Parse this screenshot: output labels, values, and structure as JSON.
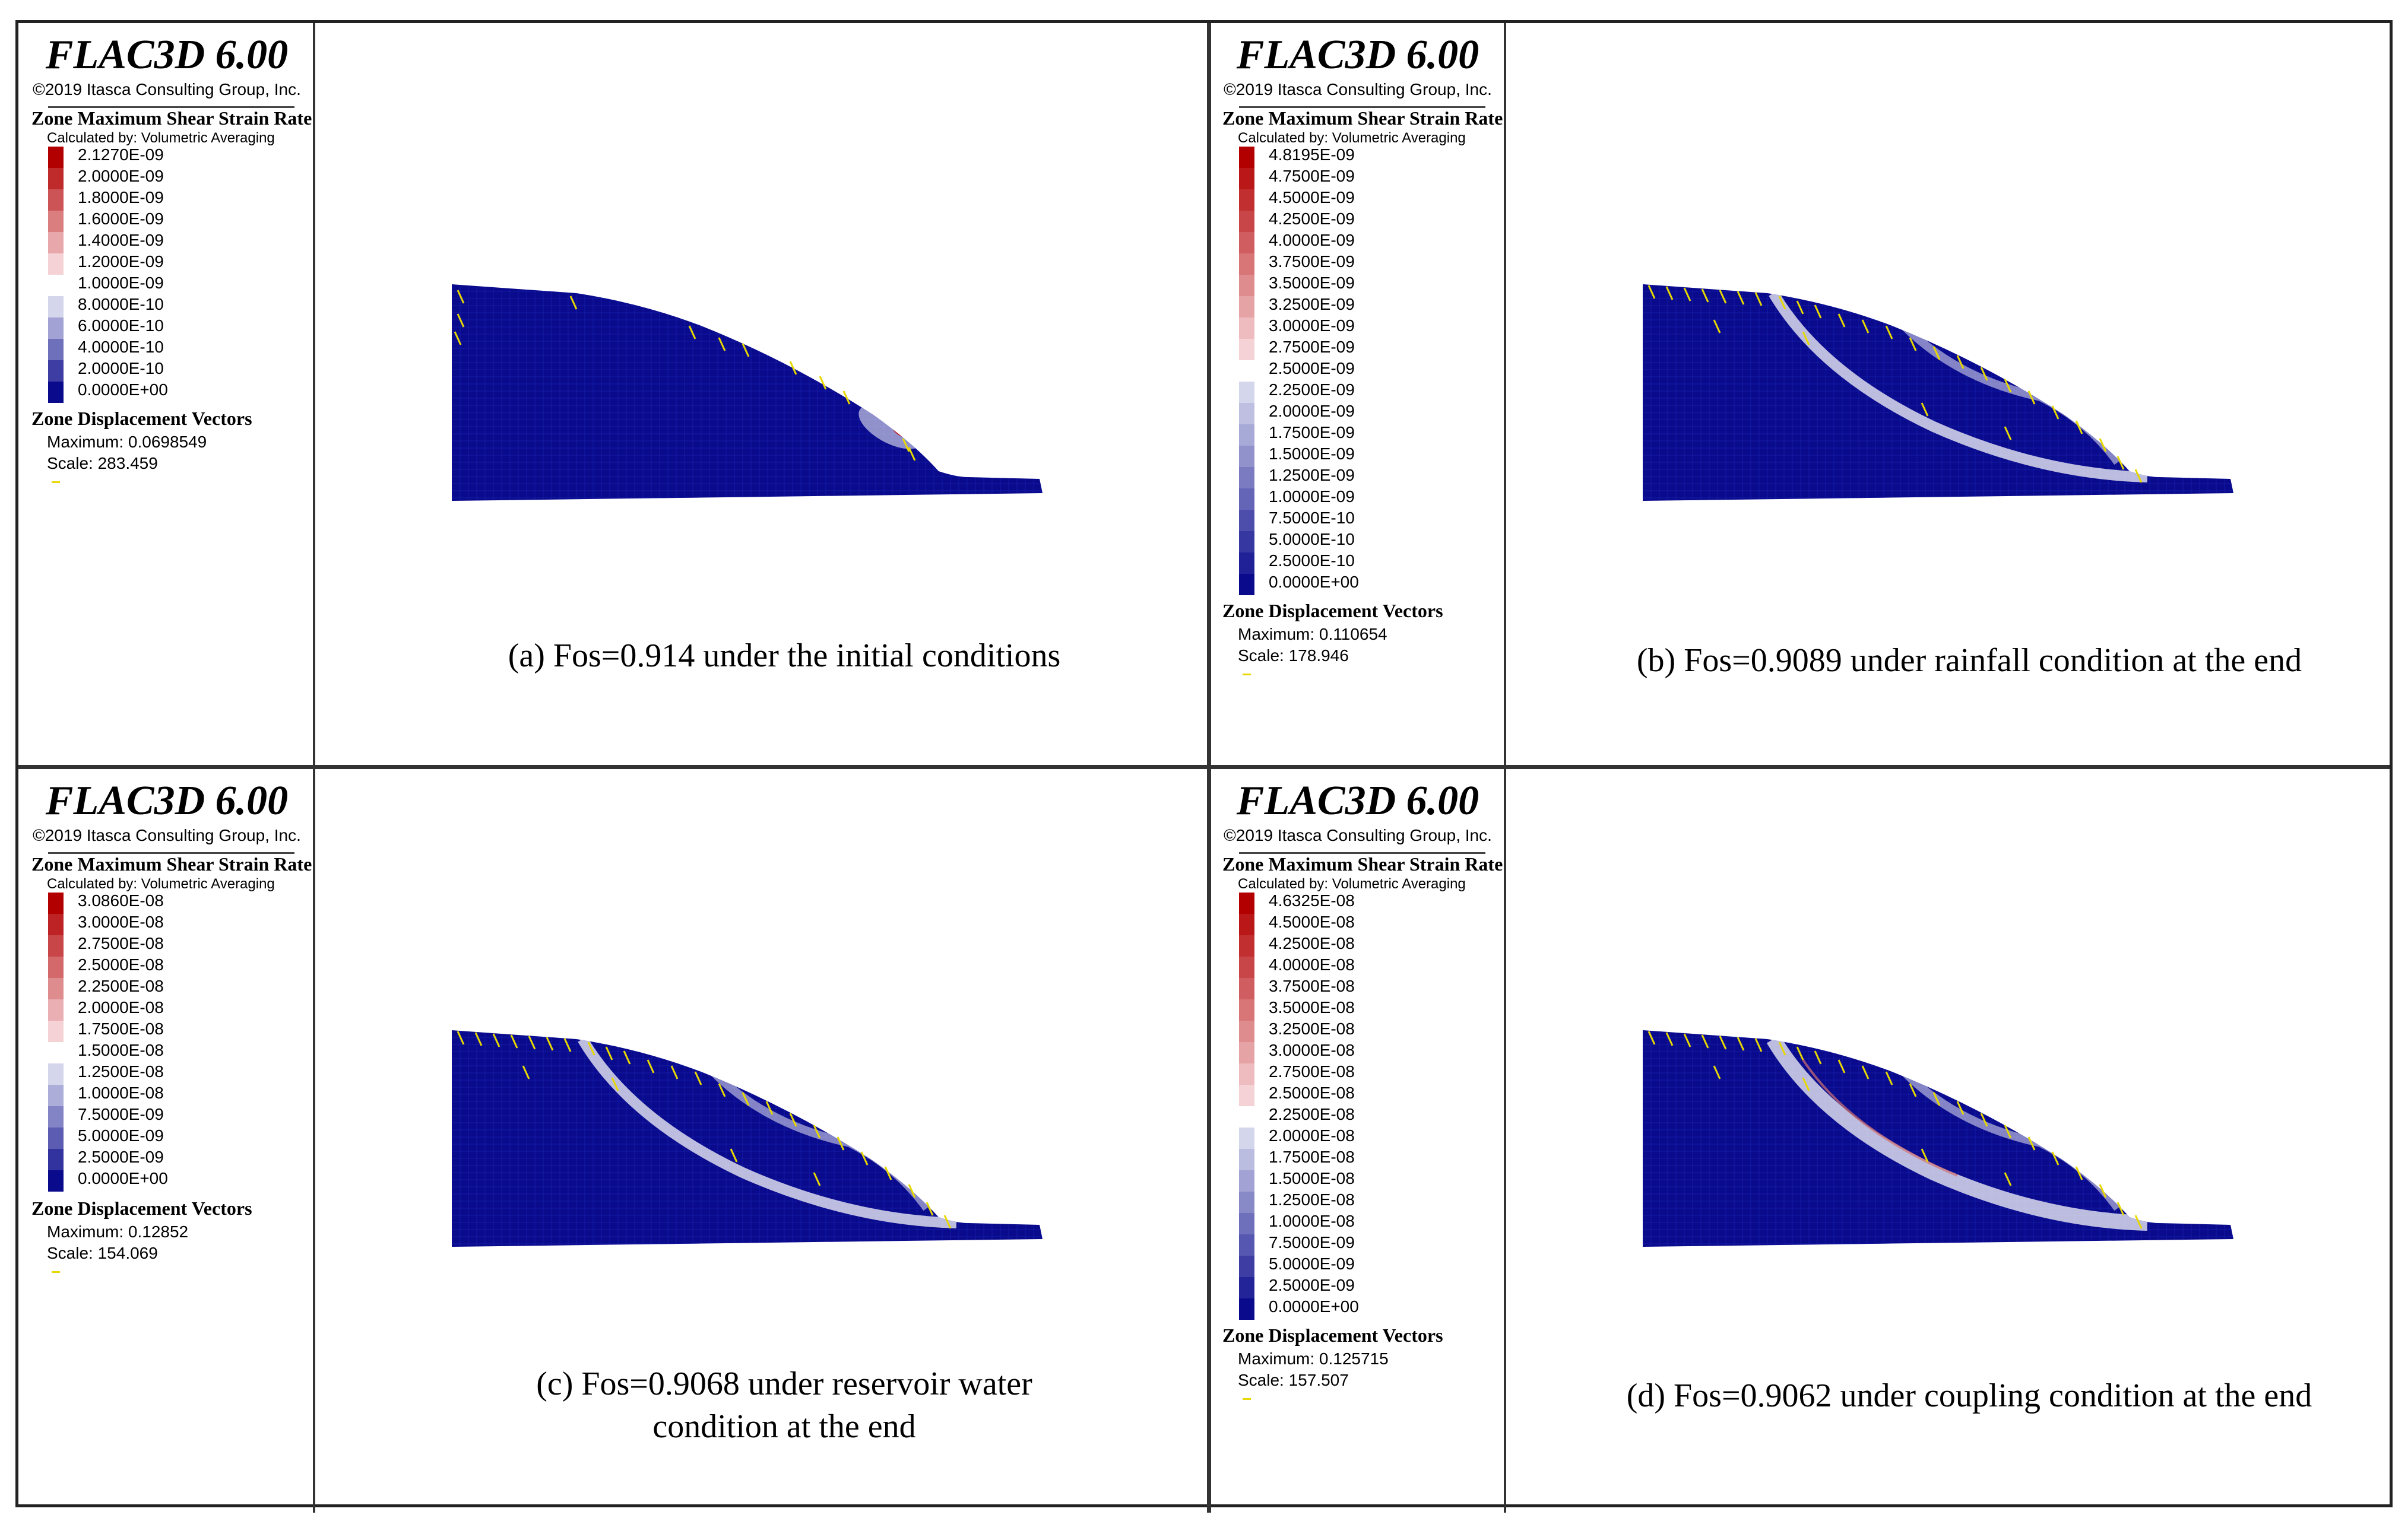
{
  "panels": [
    {
      "software": "FLAC3D 6.00",
      "copyright": "©2019 Itasca Consulting Group, Inc.",
      "contour_heading": "Zone Maximum Shear Strain Rate",
      "contour_sub": "Calculated by: Volumetric Averaging",
      "scale_labels": [
        "2.1270E-09",
        "2.0000E-09",
        "1.8000E-09",
        "1.6000E-09",
        "1.4000E-09",
        "1.2000E-09",
        "1.0000E-09",
        "8.0000E-10",
        "6.0000E-10",
        "4.0000E-10",
        "2.0000E-10",
        "0.0000E+00"
      ],
      "vectors_heading": "Zone Displacement Vectors",
      "maximum": "Maximum: 0.0698549",
      "scale": "Scale: 283.459",
      "caption": "(a)  Fos=0.914  under the initial conditions"
    },
    {
      "software": "FLAC3D 6.00",
      "copyright": "©2019 Itasca Consulting Group, Inc.",
      "contour_heading": "Zone Maximum Shear Strain Rate",
      "contour_sub": "Calculated by: Volumetric Averaging",
      "scale_labels": [
        "4.8195E-09",
        "4.7500E-09",
        "4.5000E-09",
        "4.2500E-09",
        "4.0000E-09",
        "3.7500E-09",
        "3.5000E-09",
        "3.2500E-09",
        "3.0000E-09",
        "2.7500E-09",
        "2.5000E-09",
        "2.2500E-09",
        "2.0000E-09",
        "1.7500E-09",
        "1.5000E-09",
        "1.2500E-09",
        "1.0000E-09",
        "7.5000E-10",
        "5.0000E-10",
        "2.5000E-10",
        "0.0000E+00"
      ],
      "vectors_heading": "Zone Displacement Vectors",
      "maximum": "Maximum: 0.110654",
      "scale": "Scale: 178.946",
      "caption": "(b)  Fos=0.9089 under rainfall condition at the end"
    },
    {
      "software": "FLAC3D 6.00",
      "copyright": "©2019 Itasca Consulting Group, Inc.",
      "contour_heading": "Zone Maximum Shear Strain Rate",
      "contour_sub": "Calculated by: Volumetric Averaging",
      "scale_labels": [
        "3.0860E-08",
        "3.0000E-08",
        "2.7500E-08",
        "2.5000E-08",
        "2.2500E-08",
        "2.0000E-08",
        "1.7500E-08",
        "1.5000E-08",
        "1.2500E-08",
        "1.0000E-08",
        "7.5000E-09",
        "5.0000E-09",
        "2.5000E-09",
        "0.0000E+00"
      ],
      "vectors_heading": "Zone Displacement Vectors",
      "maximum": "Maximum: 0.12852",
      "scale": "Scale: 154.069",
      "caption_line1": "(c) Fos=0.9068 under  reservoir water",
      "caption_line2": "condition at the end"
    },
    {
      "software": "FLAC3D 6.00",
      "copyright": "©2019 Itasca Consulting Group, Inc.",
      "contour_heading": "Zone Maximum Shear Strain Rate",
      "contour_sub": "Calculated by: Volumetric Averaging",
      "scale_labels": [
        "4.6325E-08",
        "4.5000E-08",
        "4.2500E-08",
        "4.0000E-08",
        "3.7500E-08",
        "3.5000E-08",
        "3.2500E-08",
        "3.0000E-08",
        "2.7500E-08",
        "2.5000E-08",
        "2.2500E-08",
        "2.0000E-08",
        "1.7500E-08",
        "1.5000E-08",
        "1.2500E-08",
        "1.0000E-08",
        "7.5000E-09",
        "5.0000E-09",
        "2.5000E-09",
        "0.0000E+00"
      ],
      "vectors_heading": "Zone Displacement Vectors",
      "maximum": "Maximum: 0.125715",
      "scale": "Scale: 157.507",
      "caption": "(d) Fos=0.9062 under coupling condition at the end"
    }
  ],
  "colors": {
    "model_fill": "#0a0a8c",
    "mesh_line": "#1d2bb8",
    "vector": "#e6d800",
    "high_strain": "#c01010",
    "mid_strain": "#e8e8f4"
  }
}
